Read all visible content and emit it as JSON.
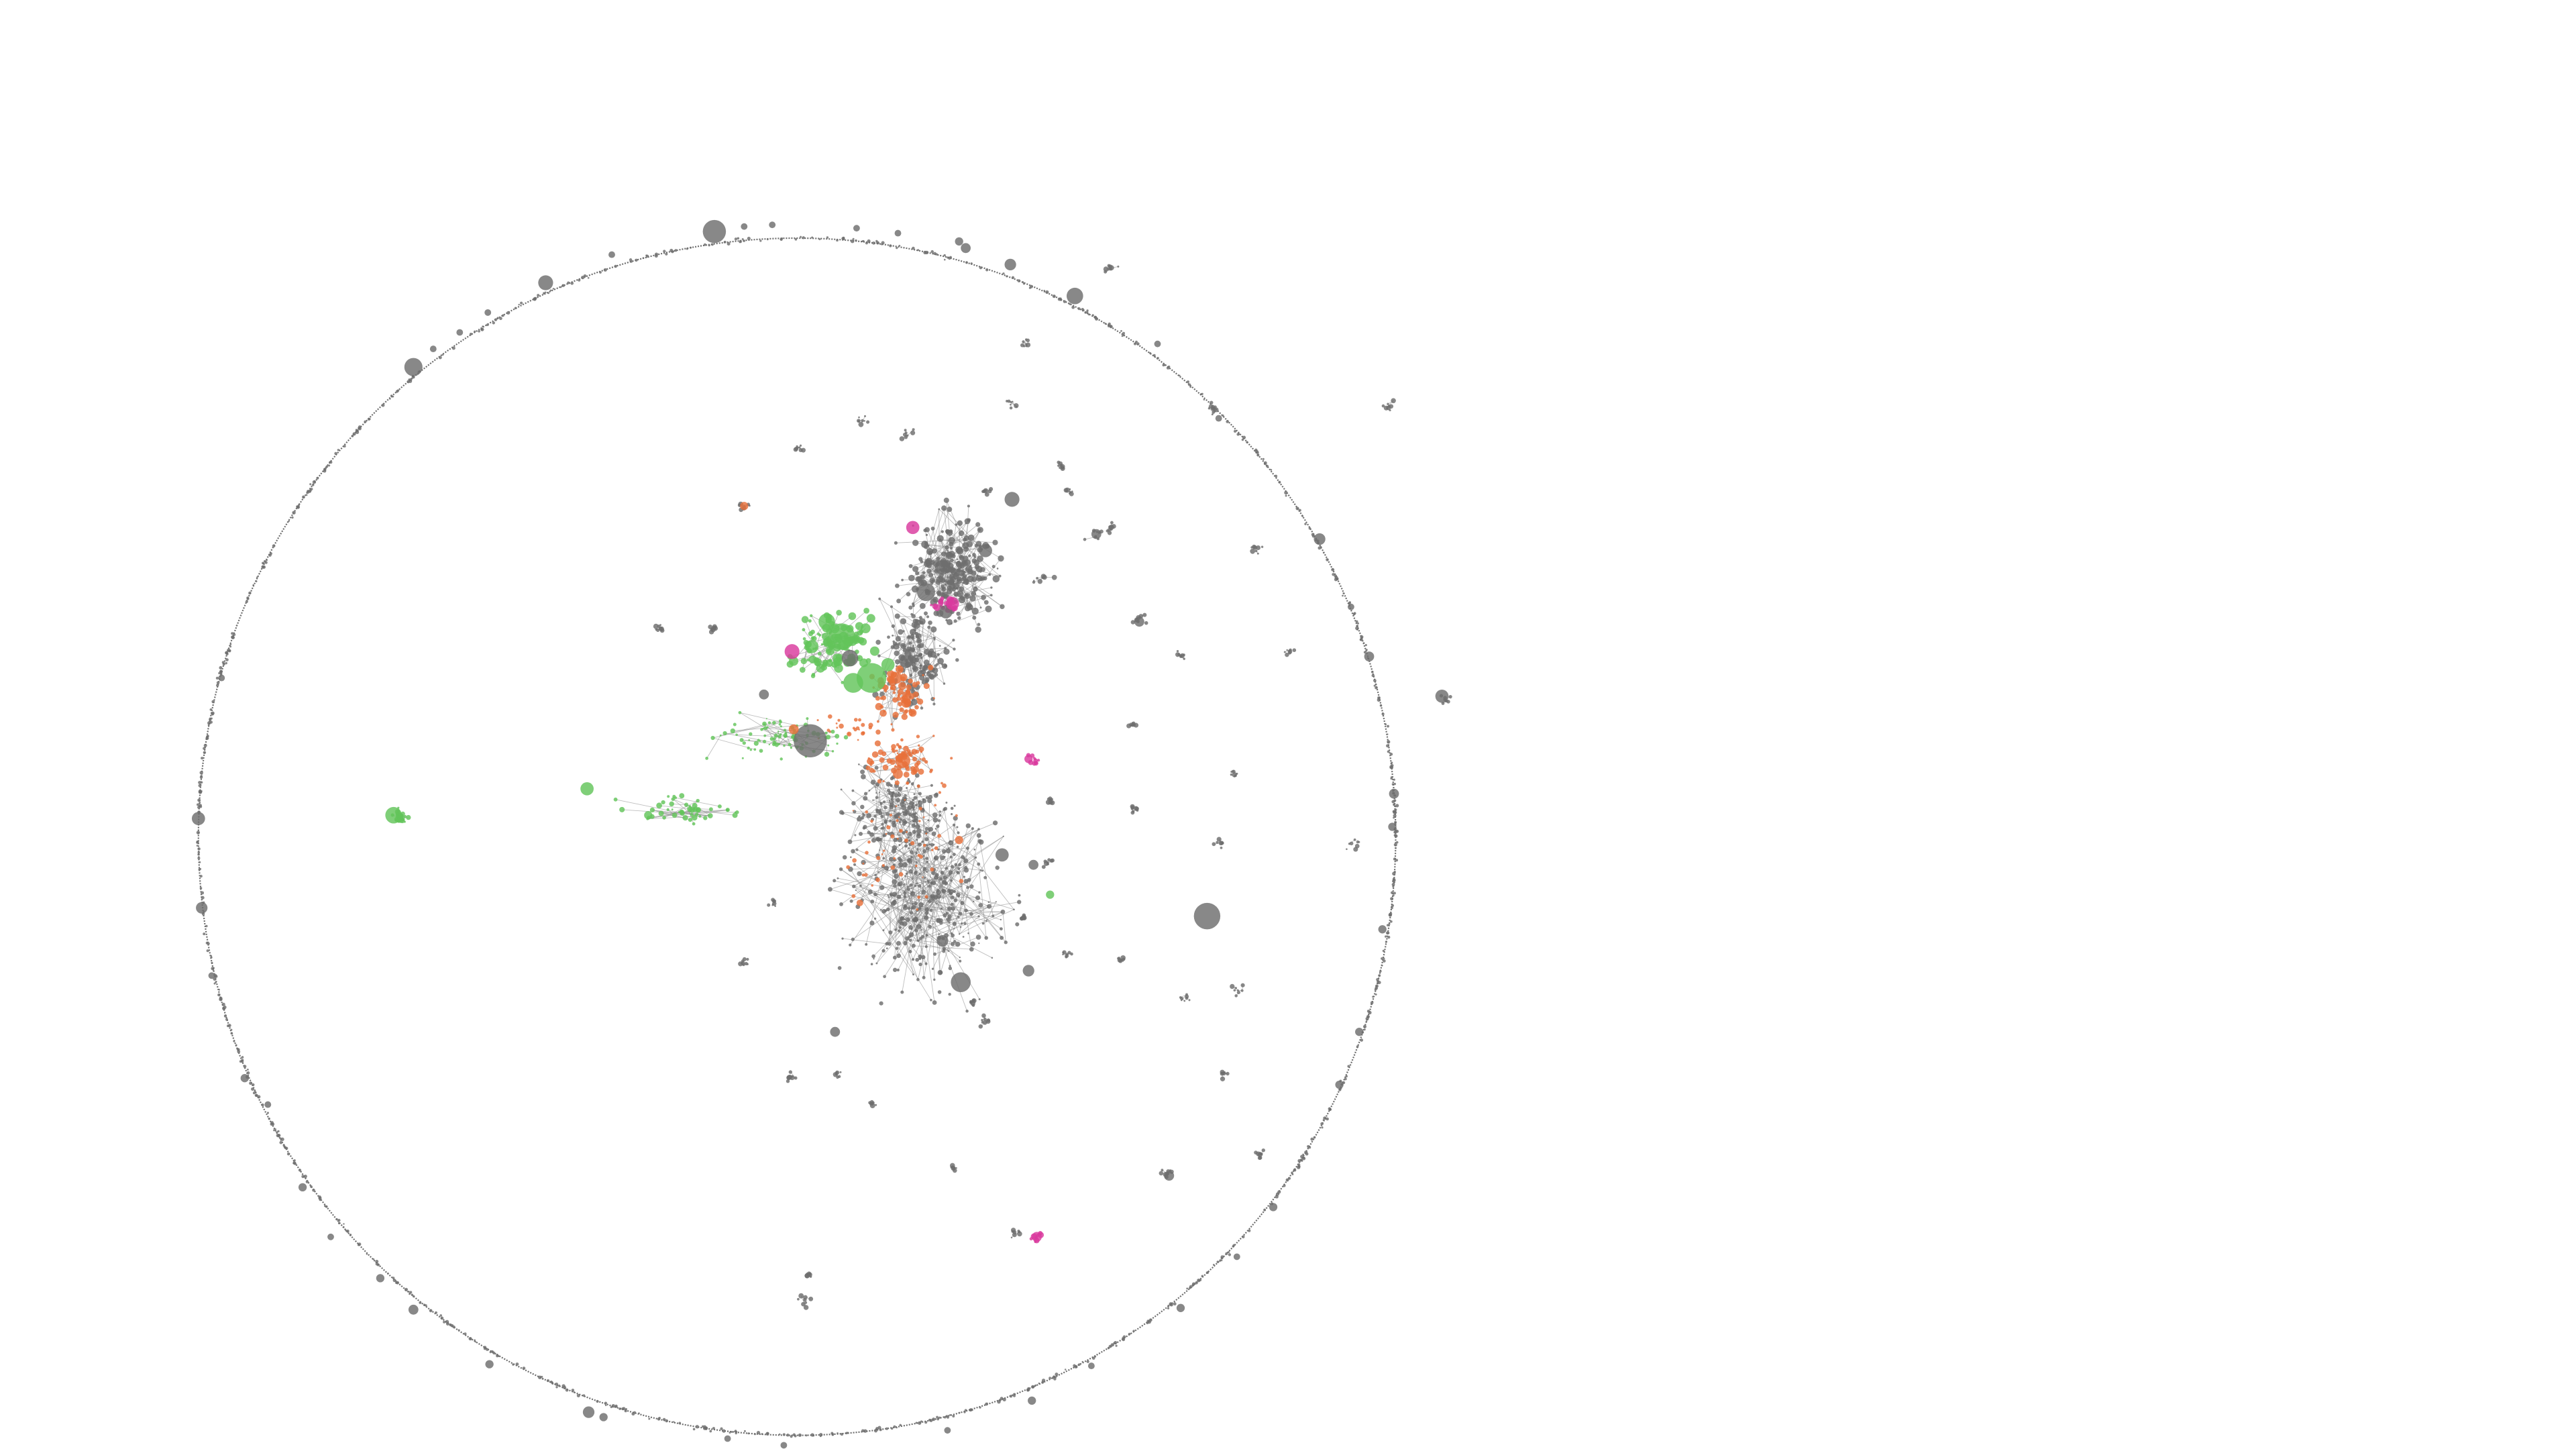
{
  "diagram": {
    "type": "network-graph",
    "legend": null,
    "labels": [],
    "colors": {
      "background": "#ffffff",
      "default_node": "#6e6e6e",
      "edge": "#8a8a8a",
      "group_green": "#63c45a",
      "group_orange": "#e8703a",
      "group_magenta": "#d9399d"
    },
    "groups": [
      "default_node",
      "group_green",
      "group_orange",
      "group_magenta"
    ]
  }
}
